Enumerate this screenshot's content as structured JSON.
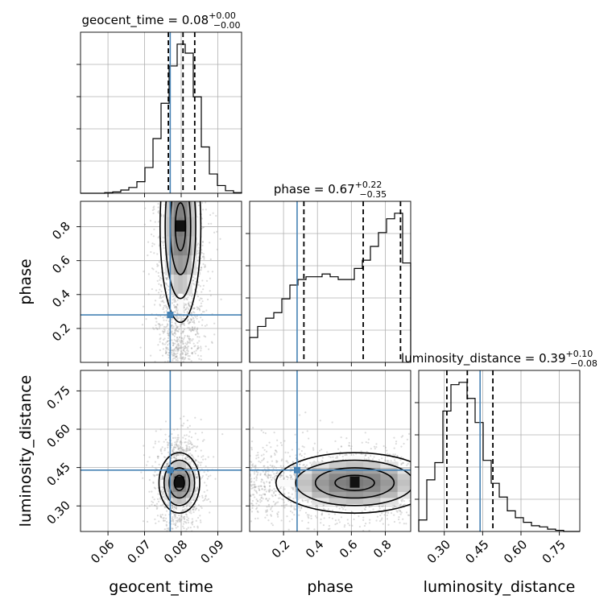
{
  "chart_data": {
    "type": "corner",
    "parameters": [
      "geocent_time",
      "phase",
      "luminosity_distance"
    ],
    "truths": {
      "geocent_time": 0.077,
      "phase": 0.28,
      "luminosity_distance": 0.44
    },
    "truth_color": "#4682b4",
    "line_color": "#000000",
    "titles": {
      "geocent_time": {
        "prefix": "geocent_time = 0.08",
        "plus": "+0.00",
        "minus": "−0.00"
      },
      "phase": {
        "prefix": "phase = 0.67",
        "plus": "+0.22",
        "minus": "−0.35"
      },
      "luminosity_distance": {
        "prefix": "luminosity_distance = 0.39",
        "plus": "+0.10",
        "minus": "−0.08"
      }
    },
    "axes": {
      "geocent_time": {
        "range": [
          0.0525,
          0.0965
        ],
        "ticks": [
          0.06,
          0.07,
          0.08,
          0.09
        ],
        "ticklabels": [
          "0.06",
          "0.07",
          "0.08",
          "0.09"
        ]
      },
      "phase": {
        "range": [
          0.0,
          0.95
        ],
        "ticks": [
          0.2,
          0.4,
          0.6,
          0.8
        ],
        "ticklabels": [
          "0.2",
          "0.4",
          "0.6",
          "0.8"
        ]
      },
      "luminosity_distance": {
        "range": [
          0.2,
          0.83
        ],
        "ticks": [
          0.3,
          0.45,
          0.6,
          0.75
        ],
        "ticklabels": [
          "0.30",
          "0.45",
          "0.60",
          "0.75"
        ]
      }
    },
    "diagonal": {
      "geocent_time": {
        "quantiles": [
          0.0765,
          0.0805,
          0.0837
        ],
        "bin_edges": [
          0.0525,
          0.0547,
          0.0569,
          0.0591,
          0.0613,
          0.0635,
          0.0657,
          0.0679,
          0.0701,
          0.0723,
          0.0745,
          0.0767,
          0.0789,
          0.0811,
          0.0833,
          0.0855,
          0.0877,
          0.0899,
          0.0921,
          0.0943,
          0.0965
        ],
        "counts": [
          0,
          0,
          0,
          1,
          2,
          5,
          9,
          18,
          40,
          85,
          140,
          198,
          232,
          218,
          150,
          72,
          30,
          12,
          4,
          1
        ]
      },
      "phase": {
        "quantiles": [
          0.32,
          0.67,
          0.89
        ],
        "bin_edges": [
          0.0,
          0.0475,
          0.095,
          0.1425,
          0.19,
          0.2375,
          0.285,
          0.3325,
          0.38,
          0.4275,
          0.475,
          0.5225,
          0.57,
          0.6175,
          0.665,
          0.7125,
          0.76,
          0.8075,
          0.855,
          0.9025,
          0.95
        ],
        "counts": [
          18,
          26,
          32,
          36,
          46,
          56,
          60,
          62,
          62,
          64,
          62,
          60,
          60,
          68,
          74,
          84,
          94,
          104,
          108,
          72
        ]
      },
      "luminosity_distance": {
        "quantiles": [
          0.31,
          0.39,
          0.49
        ],
        "bin_edges": [
          0.2,
          0.2315,
          0.263,
          0.2945,
          0.326,
          0.3575,
          0.389,
          0.4205,
          0.452,
          0.4835,
          0.515,
          0.5465,
          0.578,
          0.6095,
          0.641,
          0.6725,
          0.704,
          0.7355,
          0.767,
          0.7985,
          0.83
        ],
        "counts": [
          10,
          45,
          60,
          105,
          128,
          130,
          116,
          95,
          62,
          42,
          30,
          18,
          12,
          8,
          5,
          4,
          2,
          1,
          0,
          0
        ]
      }
    },
    "pairs": [
      {
        "x": "geocent_time",
        "y": "phase",
        "center": [
          0.0798,
          0.8
        ],
        "spread": [
          0.0028,
          0.28
        ]
      },
      {
        "x": "geocent_time",
        "y": "luminosity_distance",
        "center": [
          0.0795,
          0.39
        ],
        "spread": [
          0.0026,
          0.07
        ]
      },
      {
        "x": "phase",
        "y": "luminosity_distance",
        "center": [
          0.62,
          0.39
        ],
        "spread": [
          0.27,
          0.065
        ]
      }
    ]
  }
}
